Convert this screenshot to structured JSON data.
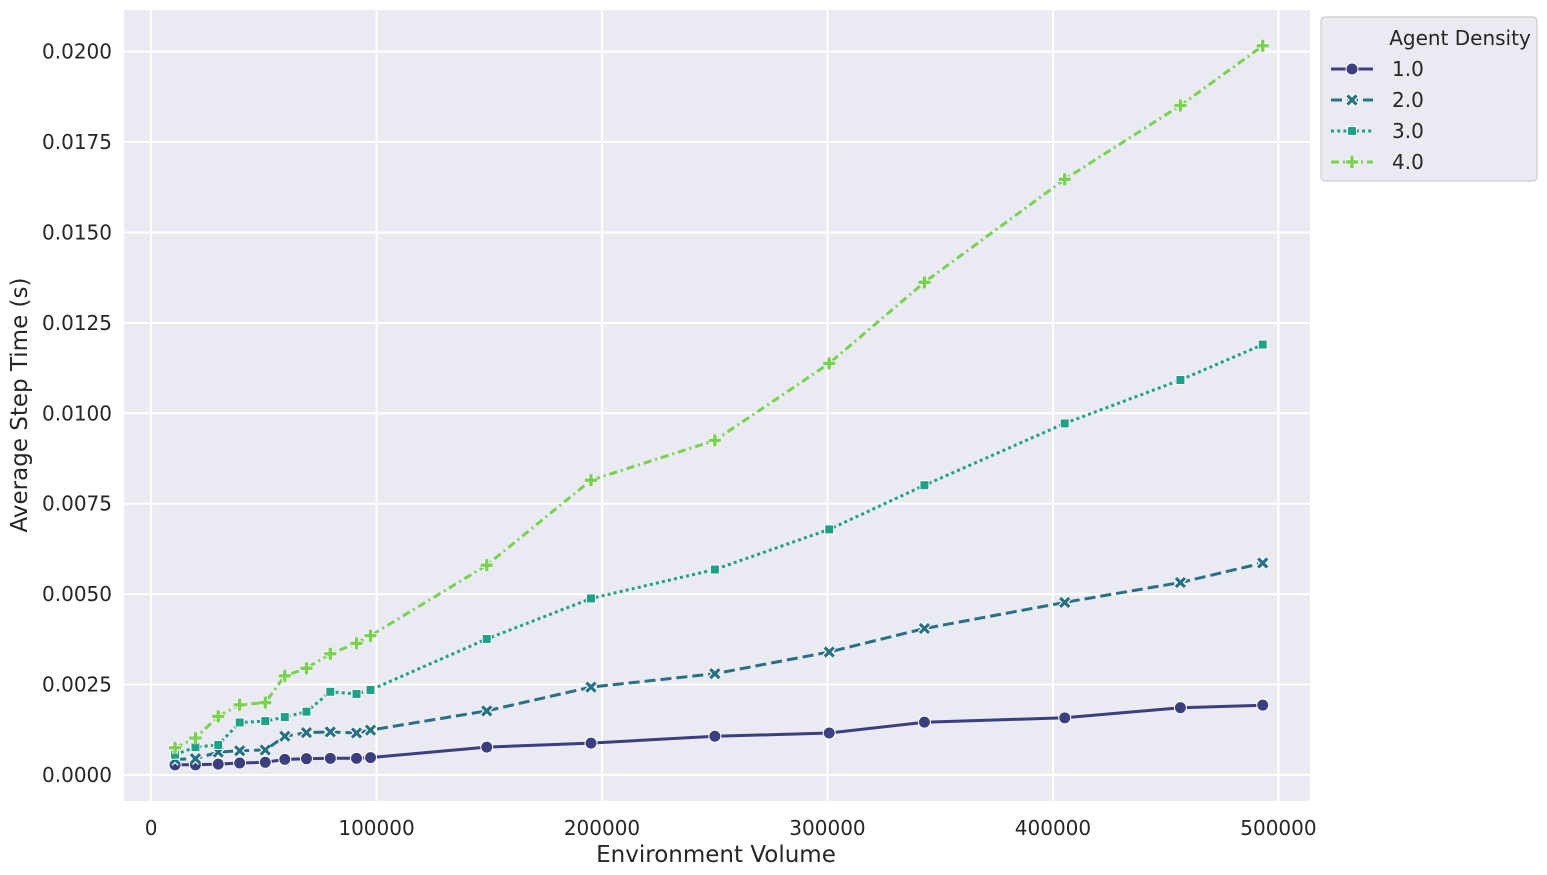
{
  "chart_data": {
    "type": "line",
    "xlabel": "Environment Volume",
    "ylabel": "Average Step Time (s)",
    "xlim": [
      -12000,
      514000
    ],
    "ylim": [
      -0.00072,
      0.02115
    ],
    "x_ticks": [
      0,
      100000,
      200000,
      300000,
      400000,
      500000
    ],
    "x_tick_labels": [
      "0",
      "100000",
      "200000",
      "300000",
      "400000",
      "500000"
    ],
    "y_ticks": [
      0.0,
      0.0025,
      0.005,
      0.0075,
      0.01,
      0.0125,
      0.015,
      0.0175,
      0.02
    ],
    "y_tick_labels": [
      "0.0000",
      "0.0025",
      "0.0050",
      "0.0075",
      "0.0100",
      "0.0125",
      "0.0150",
      "0.0175",
      "0.0200"
    ],
    "grid": true,
    "legend": {
      "title": "Agent Density",
      "placement": "outside-top-right"
    },
    "series": [
      {
        "name": "1.0",
        "color": "#3b3f80",
        "dash": "solid",
        "marker": "circle",
        "x": [
          10648,
          19683,
          29791,
          39304,
          50653,
          59319,
          68921,
          79507,
          91125,
          97336,
          148877,
          195112,
          250047,
          300763,
          343000,
          405224,
          456533,
          493039
        ],
        "y": [
          0.00028,
          0.00028,
          0.0003,
          0.00033,
          0.00035,
          0.00043,
          0.00045,
          0.00046,
          0.00046,
          0.00048,
          0.00077,
          0.00088,
          0.00107,
          0.00116,
          0.00146,
          0.00158,
          0.00186,
          0.00193
        ]
      },
      {
        "name": "2.0",
        "color": "#287185",
        "dash": "dashed",
        "marker": "x",
        "x": [
          10648,
          19683,
          29791,
          39304,
          50653,
          59319,
          68921,
          79507,
          91125,
          97336,
          148877,
          195112,
          250047,
          300763,
          343000,
          405224,
          456533,
          493039
        ],
        "y": [
          0.00043,
          0.00045,
          0.00063,
          0.00067,
          0.00069,
          0.00107,
          0.00117,
          0.00119,
          0.00116,
          0.00124,
          0.00177,
          0.00243,
          0.0028,
          0.0034,
          0.00405,
          0.00477,
          0.00532,
          0.00586
        ]
      },
      {
        "name": "3.0",
        "color": "#1fa187",
        "dash": "dotted",
        "marker": "square",
        "x": [
          10648,
          19683,
          29791,
          39304,
          50653,
          59319,
          68921,
          79507,
          91125,
          97336,
          148877,
          195112,
          250047,
          300763,
          343000,
          405224,
          456533,
          493039
        ],
        "y": [
          0.00056,
          0.00077,
          0.00083,
          0.00145,
          0.00149,
          0.0016,
          0.00175,
          0.0023,
          0.00224,
          0.00235,
          0.00376,
          0.00488,
          0.00568,
          0.00679,
          0.00801,
          0.00972,
          0.01092,
          0.0119
        ]
      },
      {
        "name": "4.0",
        "color": "#7ad151",
        "dash": "dashdot",
        "marker": "plus",
        "x": [
          10648,
          19683,
          29791,
          39304,
          50653,
          59319,
          68921,
          79507,
          91125,
          97336,
          148877,
          195112,
          250047,
          300763,
          343000,
          405224,
          456533,
          493039
        ],
        "y": [
          0.00075,
          0.00102,
          0.00162,
          0.00194,
          0.002,
          0.00274,
          0.00295,
          0.00335,
          0.00364,
          0.00385,
          0.0058,
          0.00815,
          0.00925,
          0.01138,
          0.01362,
          0.01647,
          0.01851,
          0.02016
        ]
      }
    ]
  }
}
